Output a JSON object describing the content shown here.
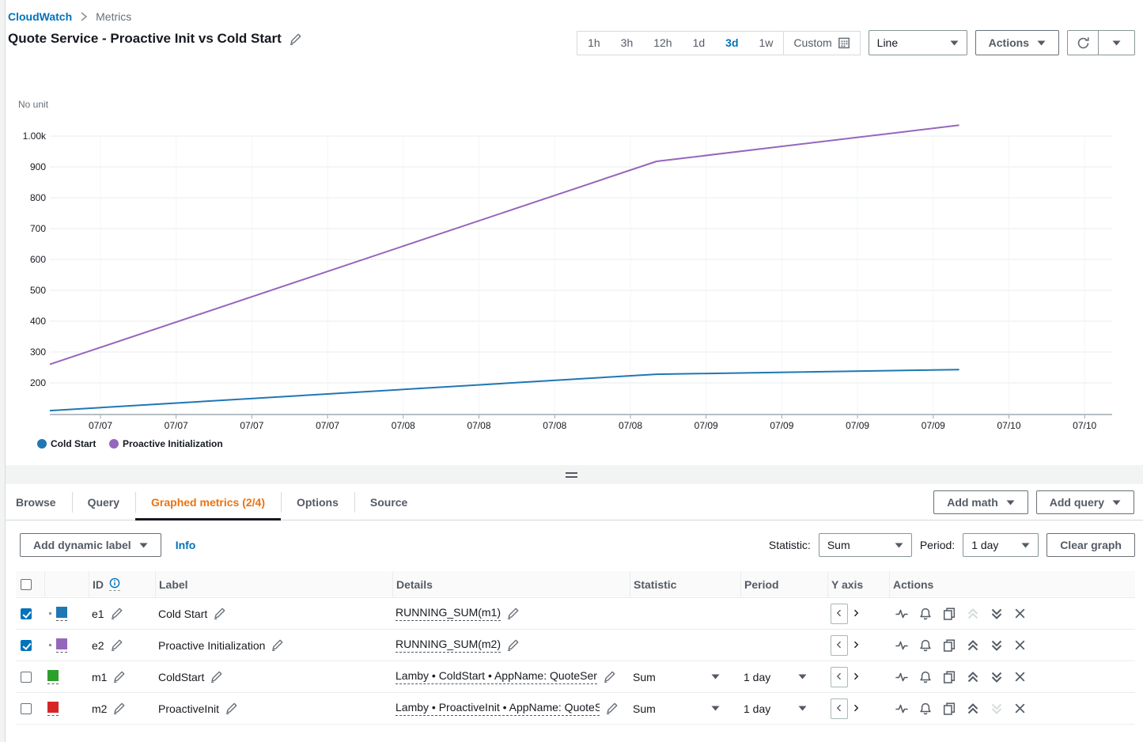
{
  "breadcrumb": {
    "root": "CloudWatch",
    "current": "Metrics"
  },
  "header": {
    "title": "Quote Service - Proactive Init vs Cold Start"
  },
  "toolbar": {
    "time_ranges": [
      "1h",
      "3h",
      "12h",
      "1d",
      "3d",
      "1w"
    ],
    "selected_range": "3d",
    "custom_label": "Custom",
    "chart_type_value": "Line",
    "actions_label": "Actions"
  },
  "chart_data": {
    "type": "line",
    "y_note": "No unit",
    "yticks": [
      {
        "label": "1.00k",
        "value": 1000
      },
      {
        "label": "900",
        "value": 900
      },
      {
        "label": "800",
        "value": 800
      },
      {
        "label": "700",
        "value": 700
      },
      {
        "label": "600",
        "value": 600
      },
      {
        "label": "500",
        "value": 500
      },
      {
        "label": "400",
        "value": 400
      },
      {
        "label": "300",
        "value": 300
      },
      {
        "label": "200",
        "value": 200
      }
    ],
    "ylim": [
      100,
      1060
    ],
    "xticks": [
      "07/07",
      "07/07",
      "07/07",
      "07/07",
      "07/08",
      "07/08",
      "07/08",
      "07/08",
      "07/09",
      "07/09",
      "07/09",
      "07/09",
      "07/10",
      "07/10"
    ],
    "grid": true,
    "legend_position": "bottom-left",
    "series": [
      {
        "name": "Cold Start",
        "color": "#1f77b4",
        "points": [
          {
            "t": 0.0,
            "v": 110
          },
          {
            "t": 0.571,
            "v": 228
          },
          {
            "t": 0.856,
            "v": 243
          }
        ]
      },
      {
        "name": "Proactive Initialization",
        "color": "#9467bd",
        "points": [
          {
            "t": 0.0,
            "v": 260
          },
          {
            "t": 0.571,
            "v": 918
          },
          {
            "t": 0.856,
            "v": 1035
          }
        ]
      }
    ]
  },
  "tabs": {
    "items": [
      {
        "label": "Browse",
        "active": false
      },
      {
        "label": "Query",
        "active": false
      },
      {
        "label": "Graphed metrics (2/4)",
        "active": true
      },
      {
        "label": "Options",
        "active": false
      },
      {
        "label": "Source",
        "active": false
      }
    ],
    "add_math_label": "Add math",
    "add_query_label": "Add query"
  },
  "controls": {
    "add_dynamic_label": "Add dynamic label",
    "info_label": "Info",
    "statistic_label": "Statistic:",
    "statistic_value": "Sum",
    "period_label": "Period:",
    "period_value": "1 day",
    "clear_graph_label": "Clear graph"
  },
  "table": {
    "headers": {
      "id": "ID",
      "label": "Label",
      "details": "Details",
      "statistic": "Statistic",
      "period": "Period",
      "y_axis": "Y axis",
      "actions": "Actions"
    },
    "rows": [
      {
        "id": "e1",
        "checked": true,
        "color": "#1f77b4",
        "label": "Cold Start",
        "details": "RUNNING_SUM(m1)",
        "statistic": "",
        "period": "",
        "up_disabled": true,
        "down_disabled": false
      },
      {
        "id": "e2",
        "checked": true,
        "color": "#9467bd",
        "label": "Proactive Initialization",
        "details": "RUNNING_SUM(m2)",
        "statistic": "",
        "period": "",
        "up_disabled": false,
        "down_disabled": false
      },
      {
        "id": "m1",
        "checked": false,
        "color": "#2ca02c",
        "label": "ColdStart",
        "details": "Lamby • ColdStart • AppName: QuoteSer",
        "statistic": "Sum",
        "period": "1 day",
        "up_disabled": false,
        "down_disabled": false
      },
      {
        "id": "m2",
        "checked": false,
        "color": "#d62728",
        "label": "ProactiveInit",
        "details": "Lamby • ProactiveInit • AppName: QuoteS",
        "statistic": "Sum",
        "period": "1 day",
        "up_disabled": false,
        "down_disabled": true
      }
    ]
  },
  "colors": {
    "link": "#0073bb",
    "active_tab": "#ec7211",
    "text_dark": "#16191f",
    "text_gray": "#545b64",
    "border": "#879596",
    "row_border": "#eaeded",
    "strip_bg": "#f2f3f3"
  }
}
